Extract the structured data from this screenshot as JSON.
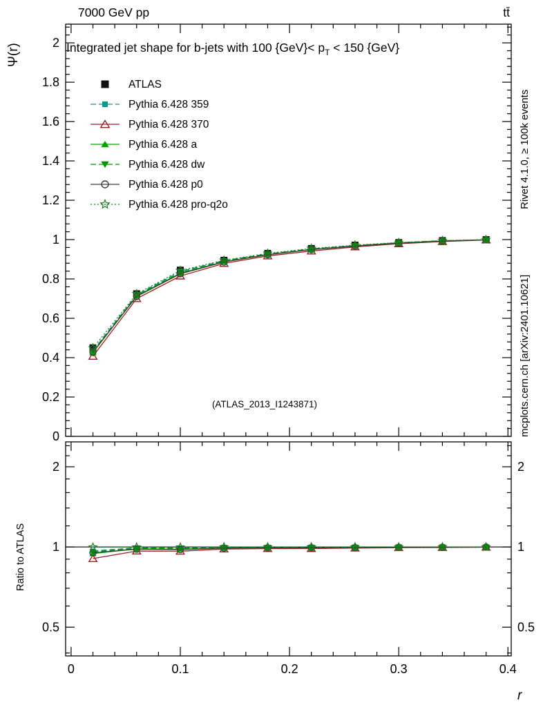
{
  "header": {
    "left": "7000 GeV pp",
    "right": "tt̄"
  },
  "title": {
    "pre": "Integrated jet shape for b-jets with 100 {GeV}< p",
    "sub": "T",
    "post": " < 150 {GeV}"
  },
  "watermark": "(ATLAS_2013_I1243871)",
  "side_notes": {
    "top_right": "Rivet 4.1.0, ≥ 100k events",
    "bottom_right": "mcplots.cern.ch [arXiv:2401.10621]"
  },
  "colors": {
    "frame": "#000000",
    "gray_text": "#8a8a8a",
    "watermark": "#9e9e9e"
  },
  "chart_data": {
    "type": "line",
    "xlabel": "r",
    "x": [
      0.02,
      0.06,
      0.1,
      0.14,
      0.18,
      0.22,
      0.26,
      0.3,
      0.34,
      0.38
    ],
    "xlim": [
      -0.005,
      0.403
    ],
    "x_major_ticks": [
      0,
      0.1,
      0.2,
      0.3,
      0.4
    ],
    "x_minor_step": 0.02,
    "main_panel": {
      "ylabel": "Ψ(r)",
      "ylim": [
        0,
        2.095
      ],
      "y_major_step": 0.2,
      "y_minor_step": 0.04,
      "series": [
        {
          "name": "atlas",
          "label": "ATLAS",
          "color": "#111111",
          "marker": "square",
          "msize": 10,
          "line": "none",
          "values": [
            0.45,
            0.725,
            0.845,
            0.895,
            0.93,
            0.955,
            0.972,
            0.985,
            0.995,
            1.0
          ]
        },
        {
          "name": "pythia-6428-359",
          "label": "Pythia 6.428 359",
          "color": "#009C8A",
          "marker": "square",
          "msize": 7,
          "line": "dashed",
          "values": [
            0.435,
            0.72,
            0.838,
            0.893,
            0.928,
            0.953,
            0.97,
            0.984,
            0.994,
            0.999
          ]
        },
        {
          "name": "pythia-6428-370",
          "label": "Pythia 6.428 370",
          "color": "#9B1C1C",
          "marker": "triangle-up-open",
          "msize": 10,
          "line": "solid",
          "values": [
            0.407,
            0.7,
            0.815,
            0.879,
            0.917,
            0.942,
            0.963,
            0.979,
            0.99,
            0.998
          ]
        },
        {
          "name": "pythia-6428-a",
          "label": "Pythia 6.428 a",
          "color": "#00A400",
          "marker": "triangle-up",
          "msize": 9,
          "line": "solid",
          "values": [
            0.425,
            0.714,
            0.829,
            0.888,
            0.924,
            0.949,
            0.968,
            0.983,
            0.993,
            0.999
          ]
        },
        {
          "name": "pythia-6428-dw",
          "label": "Pythia 6.428 dw",
          "color": "#009300",
          "marker": "triangle-down",
          "msize": 9,
          "line": "dashed",
          "values": [
            0.431,
            0.716,
            0.832,
            0.89,
            0.926,
            0.951,
            0.969,
            0.984,
            0.994,
            0.999
          ]
        },
        {
          "name": "pythia-6428-p0",
          "label": "Pythia 6.428 p0",
          "color": "#3d3d3d",
          "marker": "circle-open",
          "msize": 9,
          "line": "solid",
          "values": [
            0.428,
            0.711,
            0.826,
            0.886,
            0.923,
            0.949,
            0.967,
            0.982,
            0.992,
            0.999
          ]
        },
        {
          "name": "pythia-6428-pro-q2o",
          "label": "Pythia 6.428 pro-q2o",
          "color": "#1E7A1E",
          "marker": "star-open",
          "msize": 12,
          "line": "dotted",
          "values": [
            0.449,
            0.724,
            0.843,
            0.895,
            0.93,
            0.955,
            0.972,
            0.985,
            0.995,
            1.0
          ]
        }
      ]
    },
    "ratio_panel": {
      "ylabel": "Ratio to ATLAS",
      "scale": "log",
      "ylim": [
        0.39,
        2.48
      ],
      "y_major_ticks": [
        0.5,
        1,
        2
      ],
      "y_minor_ticks": [
        0.4,
        0.6,
        0.7,
        0.8,
        0.9,
        1.2,
        1.4,
        1.6,
        1.8,
        2.2,
        2.4
      ],
      "reference": 1,
      "definition": "series_values / atlas_values"
    }
  }
}
